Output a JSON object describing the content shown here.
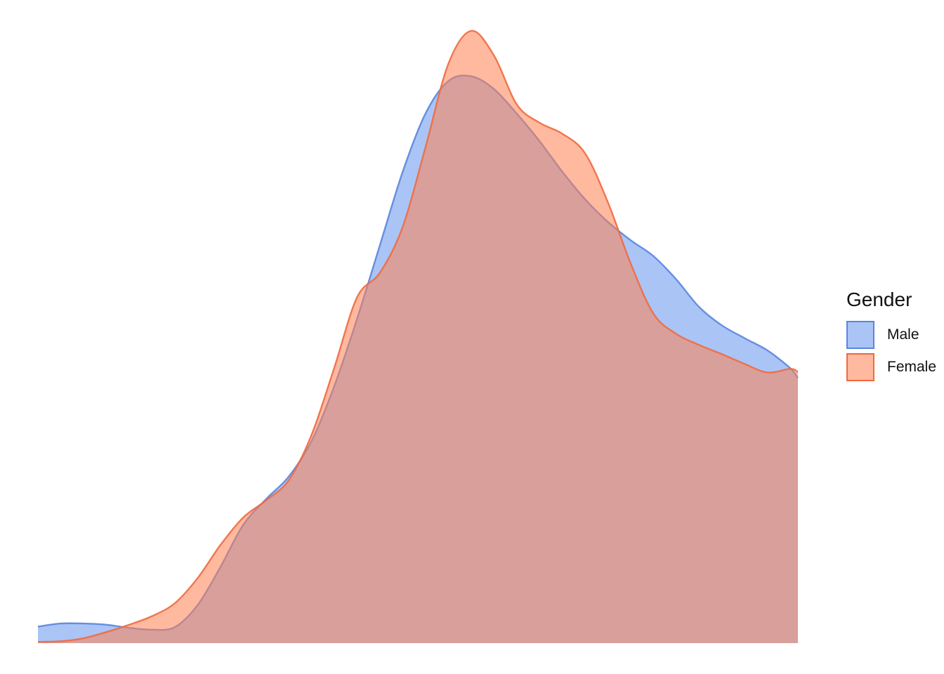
{
  "chart_data": {
    "type": "area",
    "subtype": "density",
    "title": "",
    "xlabel": "",
    "ylabel": "",
    "axes_visible": false,
    "grid": false,
    "legend": {
      "title": "Gender",
      "position": "right"
    },
    "xlim": [
      0,
      1
    ],
    "ylim": [
      0,
      1
    ],
    "x": [
      0,
      0.03,
      0.06,
      0.09,
      0.12,
      0.15,
      0.18,
      0.21,
      0.24,
      0.27,
      0.3,
      0.33,
      0.36,
      0.39,
      0.42,
      0.45,
      0.48,
      0.51,
      0.54,
      0.57,
      0.6,
      0.63,
      0.66,
      0.69,
      0.72,
      0.75,
      0.78,
      0.81,
      0.84,
      0.87,
      0.9,
      0.93,
      0.96,
      0.99,
      1.0
    ],
    "series": [
      {
        "name": "Male",
        "fill": "#6495ED",
        "stroke": "#5A85E0",
        "values": [
          0.027,
          0.032,
          0.032,
          0.03,
          0.025,
          0.022,
          0.026,
          0.062,
          0.124,
          0.193,
          0.235,
          0.272,
          0.33,
          0.42,
          0.53,
          0.65,
          0.77,
          0.865,
          0.918,
          0.926,
          0.905,
          0.865,
          0.82,
          0.77,
          0.725,
          0.688,
          0.658,
          0.632,
          0.594,
          0.549,
          0.519,
          0.498,
          0.478,
          0.449,
          0.433
        ]
      },
      {
        "name": "Female",
        "fill": "#FF7F50",
        "stroke": "#F06A40",
        "values": [
          0.002,
          0.003,
          0.008,
          0.018,
          0.03,
          0.044,
          0.065,
          0.106,
          0.16,
          0.205,
          0.233,
          0.266,
          0.34,
          0.45,
          0.565,
          0.605,
          0.68,
          0.81,
          0.946,
          1.0,
          0.96,
          0.88,
          0.85,
          0.832,
          0.8,
          0.72,
          0.62,
          0.538,
          0.505,
          0.487,
          0.472,
          0.456,
          0.442,
          0.448,
          0.443
        ]
      }
    ]
  }
}
